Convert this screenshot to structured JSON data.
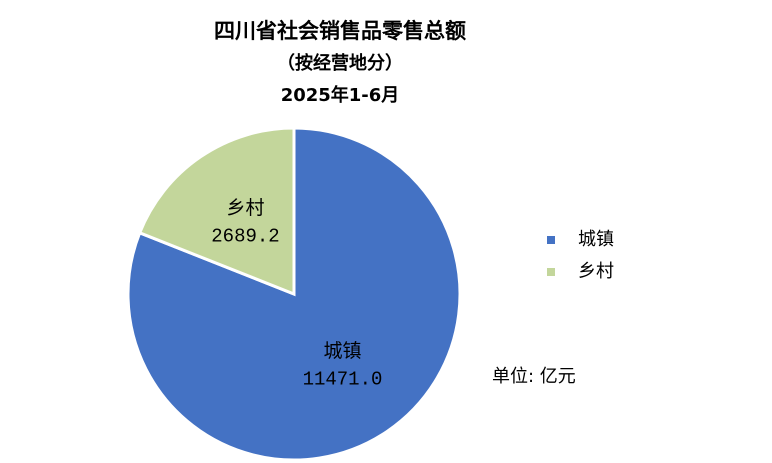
{
  "chart_data": {
    "type": "pie",
    "title": "四川省社会销售品零售总额",
    "subtitle": [
      "（按经营地分）",
      "2025年1-6月"
    ],
    "categories": [
      "城镇",
      "乡村"
    ],
    "values": [
      11471.0,
      2689.2
    ],
    "value_labels": [
      "11471.0",
      "2689.2"
    ],
    "colors": [
      "#4472c4",
      "#c3d69b"
    ],
    "legend": "right",
    "annotation": "单位: 亿元"
  }
}
